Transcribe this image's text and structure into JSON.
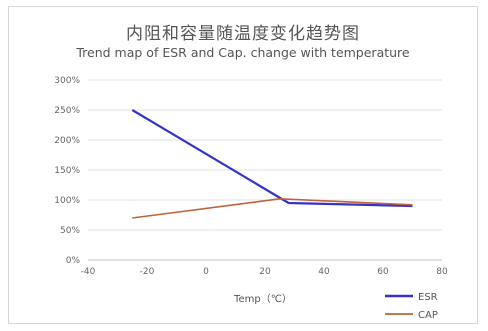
{
  "chart_data": {
    "type": "line",
    "title": "内阻和容量随温度变化趋势图",
    "subtitle": "Trend map of ESR and Cap. change with temperature",
    "xlabel": "Temp（℃）",
    "ylabel": "",
    "xlim": [
      -40,
      80
    ],
    "ylim": [
      0,
      300
    ],
    "x_ticks": [
      -40,
      -20,
      0,
      20,
      40,
      60,
      80
    ],
    "y_ticks": [
      "0%",
      "50%",
      "100%",
      "150%",
      "200%",
      "250%",
      "300%"
    ],
    "grid": "horizontal",
    "legend_position": "bottom-right",
    "series": [
      {
        "name": "ESR",
        "color": "#3333cc",
        "x": [
          -25,
          28,
          70
        ],
        "y": [
          250,
          95,
          90
        ]
      },
      {
        "name": "CAP",
        "color": "#c0623a",
        "x": [
          -25,
          25,
          70
        ],
        "y": [
          70,
          102,
          92
        ]
      }
    ]
  }
}
